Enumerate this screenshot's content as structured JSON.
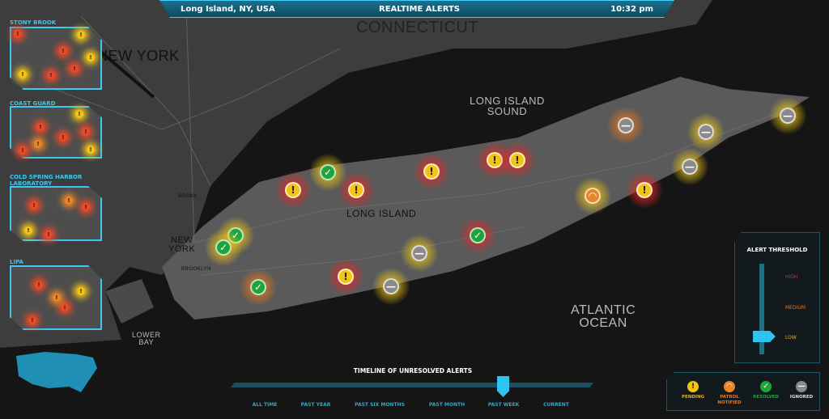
{
  "header": {
    "location": "Long Island, NY, USA",
    "title": "REALTIME ALERTS",
    "time": "10:32 pm"
  },
  "map": {
    "labels": {
      "connecticut": "CONNECTICUT",
      "new_york_state": "NEW YORK",
      "li_sound": "LONG ISLAND\nSOUND",
      "long_island": "LONG ISLAND",
      "new_york_city": "NEW\nYORK",
      "atlantic": "ATLANTIC\nOCEAN",
      "lower_bay": "LOWER\nBAY",
      "brooklyn": "BROOKLYN",
      "bronx": "BRONX"
    },
    "markers": [
      {
        "status": "pending",
        "level": "high"
      },
      {
        "status": "resolved",
        "level": "low"
      },
      {
        "status": "pending",
        "level": "high"
      },
      {
        "status": "pending",
        "level": "high"
      },
      {
        "status": "pending",
        "level": "high"
      },
      {
        "status": "pending",
        "level": "high"
      },
      {
        "status": "ignored",
        "level": "medium"
      },
      {
        "status": "ignored",
        "level": "low"
      },
      {
        "status": "ignored",
        "level": "low"
      },
      {
        "status": "ignored",
        "level": "low"
      },
      {
        "status": "patrol",
        "level": "low"
      },
      {
        "status": "pending",
        "level": "high"
      },
      {
        "status": "resolved",
        "level": "low"
      },
      {
        "status": "resolved",
        "level": "low"
      },
      {
        "status": "resolved",
        "level": "medium"
      },
      {
        "status": "ignored",
        "level": "low"
      },
      {
        "status": "resolved",
        "level": "high"
      },
      {
        "status": "pending",
        "level": "high"
      },
      {
        "status": "ignored",
        "level": "low"
      }
    ]
  },
  "sidebar": {
    "panels": [
      {
        "label": "STONY BROOK"
      },
      {
        "label": "COAST GUARD"
      },
      {
        "label": "COLD SPRING HARBOR LABORATORY"
      },
      {
        "label": "LIPA"
      }
    ]
  },
  "timeline": {
    "title": "TIMELINE OF UNRESOLVED ALERTS",
    "options": [
      "ALL TIME",
      "PAST YEAR",
      "PAST SIX MONTHS",
      "PAST MONTH",
      "PAST WEEK",
      "CURRENT"
    ],
    "selected": "PAST WEEK"
  },
  "threshold": {
    "title": "ALERT THRESHOLD",
    "levels": [
      "HIGH",
      "MEDIUM",
      "LOW"
    ],
    "selected": "LOW"
  },
  "legend": [
    {
      "label": "PENDING",
      "icon": "exclamation-icon",
      "color": "#f3c316"
    },
    {
      "label": "PATROL NOTIFIED",
      "icon": "wifi-icon",
      "color": "#e8842a"
    },
    {
      "label": "RESOLVED",
      "icon": "check-icon",
      "color": "#1fa43a"
    },
    {
      "label": "IGNORED",
      "icon": "minus-icon",
      "color": "#8a8a8a"
    }
  ],
  "colors": {
    "accent": "#3cc8f0",
    "high": "#d8282a",
    "medium": "#e0782a",
    "low": "#e0b030"
  }
}
